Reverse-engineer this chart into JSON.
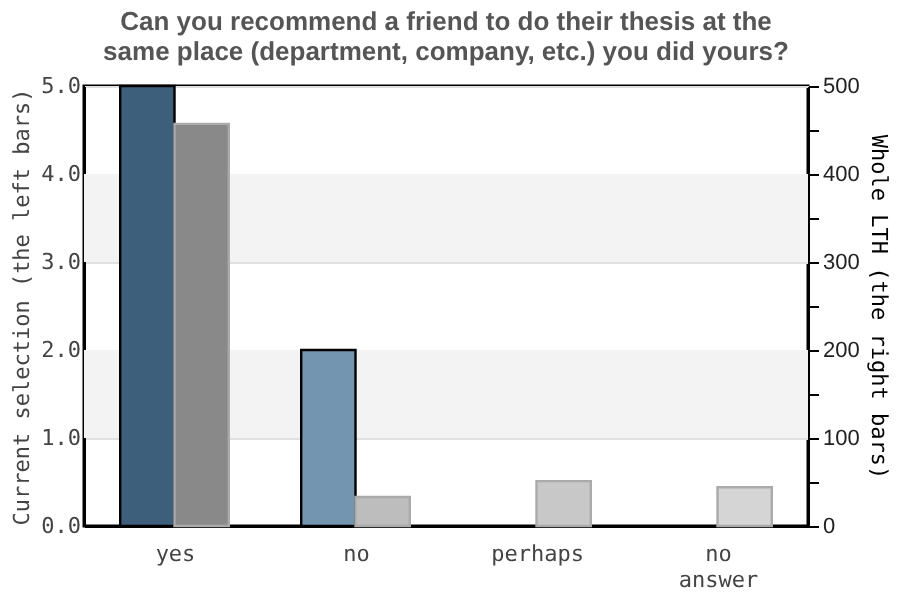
{
  "chart_data": {
    "type": "bar",
    "title": [
      "Can you recommend a friend to do their thesis at the",
      "same place (department, company, etc.) you did yours?"
    ],
    "categories": [
      "yes",
      "no",
      "perhaps",
      "no answer"
    ],
    "series": [
      {
        "name": null,
        "axis": "y",
        "colors": [
          "#3d5f7c",
          "#7395b0",
          "#7395b0",
          "#7395b0"
        ],
        "values": [
          5.0,
          2.0,
          null,
          null
        ]
      },
      {
        "name": null,
        "axis": "y2",
        "colors": [
          "#898989",
          "#bdbdbd",
          "#c8c8c8",
          "#d5d5d5"
        ],
        "values": [
          457,
          33,
          51,
          44
        ]
      }
    ],
    "ylabel": "Current selection (the left bars)",
    "y2label": "Whole LTH (the right bars)",
    "ylim": [
      0,
      5
    ],
    "yticks": [
      {
        "value": 0,
        "label": "0.0"
      },
      {
        "value": 1,
        "label": "1.0"
      },
      {
        "value": 2,
        "label": "2.0"
      },
      {
        "value": 3,
        "label": "3.0"
      },
      {
        "value": 4,
        "label": "4.0"
      },
      {
        "value": 5,
        "label": "5.0"
      }
    ],
    "y2lim": [
      0,
      500
    ],
    "y2ticks": [
      0,
      {
        "value": 50,
        "label": null
      },
      100,
      {
        "value": 150,
        "label": null
      },
      200,
      {
        "value": 250,
        "label": null
      },
      300,
      {
        "value": 350,
        "label": null
      },
      400,
      {
        "value": 450,
        "label": null
      },
      500
    ],
    "bands": [
      {
        "axis": "y",
        "from": 1,
        "to": 2,
        "color": "#f3f3f3"
      },
      {
        "axis": "y",
        "from": 3,
        "to": 4,
        "color": "#f3f3f3"
      }
    ],
    "grid": "y"
  }
}
